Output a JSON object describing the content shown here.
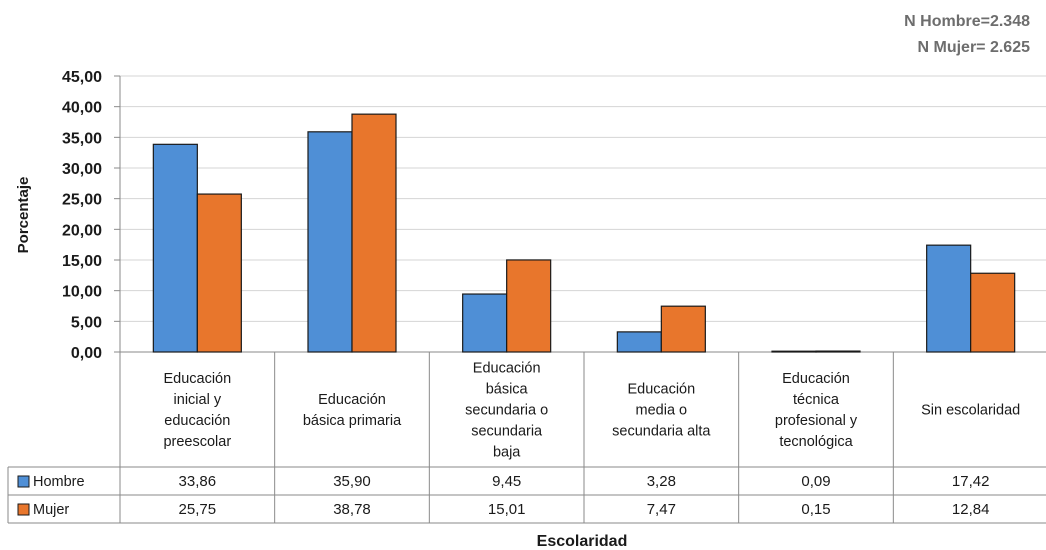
{
  "note": {
    "hombre": "N Hombre=2.348",
    "mujer": "N Mujer= 2.625"
  },
  "chart_data": {
    "type": "bar",
    "xlabel": "Escolaridad",
    "ylabel": "Porcentaje",
    "ylim": [
      0,
      45
    ],
    "yticks": [
      "0,00",
      "5,00",
      "10,00",
      "15,00",
      "20,00",
      "25,00",
      "30,00",
      "35,00",
      "40,00",
      "45,00"
    ],
    "grid": true,
    "legend_placement": "data-table-left",
    "categories": [
      [
        "Educación",
        "inicial y",
        "educación",
        "preescolar"
      ],
      [
        "Educación",
        "básica primaria"
      ],
      [
        "Educación",
        "básica",
        "secundaria o",
        "secundaria",
        "baja"
      ],
      [
        "Educación",
        "media o",
        "secundaria alta"
      ],
      [
        "Educación",
        "técnica",
        "profesional y",
        "tecnológica"
      ],
      [
        "Sin escolaridad"
      ]
    ],
    "series": [
      {
        "name": "Hombre",
        "color": "#4f8fd6",
        "values": [
          33.86,
          35.9,
          9.45,
          3.28,
          0.09,
          17.42
        ],
        "labels": [
          "33,86",
          "35,90",
          "9,45",
          "3,28",
          "0,09",
          "17,42"
        ]
      },
      {
        "name": "Mujer",
        "color": "#e8762c",
        "values": [
          25.75,
          38.78,
          15.01,
          7.47,
          0.15,
          12.84
        ],
        "labels": [
          "25,75",
          "38,78",
          "15,01",
          "7,47",
          "0,15",
          "12,84"
        ]
      }
    ]
  }
}
